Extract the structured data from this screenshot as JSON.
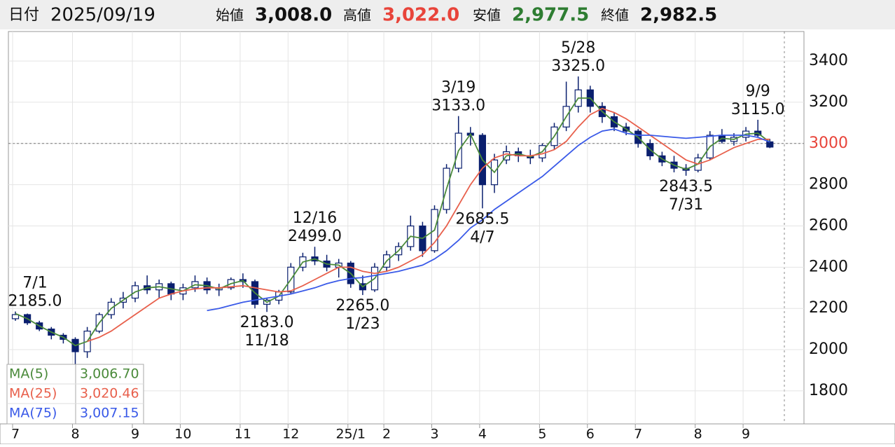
{
  "header": {
    "date_label": "日付",
    "date": "2025/09/19",
    "quotes": [
      {
        "label": "始値",
        "value": "3,008.0",
        "color": "#111111"
      },
      {
        "label": "高値",
        "value": "3,022.0",
        "color": "#e8443a"
      },
      {
        "label": "安値",
        "value": "2,977.5",
        "color": "#2e7d32"
      },
      {
        "label": "終値",
        "value": "2,982.5",
        "color": "#111111"
      }
    ]
  },
  "chart_data": {
    "type": "candlestick",
    "categories": [
      "7",
      null,
      null,
      null,
      null,
      "8",
      null,
      null,
      null,
      null,
      "9",
      null,
      null,
      null,
      "10",
      null,
      null,
      null,
      null,
      "11",
      null,
      null,
      null,
      "12",
      null,
      null,
      null,
      null,
      "25/1",
      null,
      null,
      "2",
      null,
      null,
      null,
      "3",
      null,
      null,
      null,
      "4",
      null,
      null,
      null,
      null,
      "5",
      null,
      null,
      null,
      "6",
      null,
      null,
      null,
      "7",
      null,
      null,
      null,
      null,
      "8",
      null,
      null,
      null,
      "9",
      null,
      null
    ],
    "candles": [
      [
        2150,
        2185,
        2140,
        2170
      ],
      [
        2170,
        2175,
        2120,
        2130
      ],
      [
        2130,
        2140,
        2090,
        2100
      ],
      [
        2100,
        2110,
        2050,
        2070
      ],
      [
        2070,
        2080,
        2030,
        2050
      ],
      [
        2050,
        2060,
        1920,
        1990
      ],
      [
        1990,
        2110,
        1960,
        2090
      ],
      [
        2090,
        2180,
        2080,
        2170
      ],
      [
        2170,
        2250,
        2150,
        2230
      ],
      [
        2230,
        2280,
        2200,
        2250
      ],
      [
        2250,
        2330,
        2230,
        2310
      ],
      [
        2310,
        2360,
        2270,
        2290
      ],
      [
        2290,
        2340,
        2250,
        2320
      ],
      [
        2320,
        2330,
        2240,
        2270
      ],
      [
        2270,
        2320,
        2240,
        2300
      ],
      [
        2300,
        2360,
        2280,
        2330
      ],
      [
        2330,
        2350,
        2270,
        2290
      ],
      [
        2290,
        2320,
        2260,
        2300
      ],
      [
        2300,
        2350,
        2290,
        2340
      ],
      [
        2340,
        2370,
        2300,
        2330
      ],
      [
        2330,
        2340,
        2200,
        2220
      ],
      [
        2220,
        2250,
        2183,
        2240
      ],
      [
        2240,
        2290,
        2220,
        2280
      ],
      [
        2280,
        2420,
        2270,
        2400
      ],
      [
        2400,
        2470,
        2380,
        2450
      ],
      [
        2450,
        2499,
        2410,
        2430
      ],
      [
        2430,
        2460,
        2380,
        2400
      ],
      [
        2400,
        2440,
        2350,
        2420
      ],
      [
        2420,
        2430,
        2300,
        2320
      ],
      [
        2320,
        2360,
        2265,
        2290
      ],
      [
        2290,
        2420,
        2280,
        2400
      ],
      [
        2400,
        2480,
        2380,
        2460
      ],
      [
        2460,
        2520,
        2430,
        2500
      ],
      [
        2500,
        2650,
        2480,
        2600
      ],
      [
        2600,
        2620,
        2450,
        2480
      ],
      [
        2480,
        2700,
        2470,
        2680
      ],
      [
        2680,
        2900,
        2660,
        2880
      ],
      [
        2880,
        3133,
        2860,
        3050
      ],
      [
        3050,
        3080,
        2990,
        3040
      ],
      [
        3040,
        3050,
        2685.5,
        2800
      ],
      [
        2800,
        2950,
        2760,
        2920
      ],
      [
        2920,
        2990,
        2900,
        2960
      ],
      [
        2960,
        2980,
        2910,
        2940
      ],
      [
        2940,
        2970,
        2900,
        2930
      ],
      [
        2930,
        3000,
        2910,
        2990
      ],
      [
        2990,
        3100,
        2970,
        3080
      ],
      [
        3080,
        3300,
        3060,
        3180
      ],
      [
        3180,
        3325,
        3150,
        3260
      ],
      [
        3260,
        3280,
        3150,
        3180
      ],
      [
        3180,
        3200,
        3100,
        3130
      ],
      [
        3130,
        3150,
        3060,
        3080
      ],
      [
        3080,
        3100,
        3040,
        3060
      ],
      [
        3060,
        3070,
        2980,
        3000
      ],
      [
        3000,
        3020,
        2920,
        2940
      ],
      [
        2940,
        2960,
        2890,
        2910
      ],
      [
        2910,
        2940,
        2860,
        2880
      ],
      [
        2880,
        2900,
        2843.5,
        2870
      ],
      [
        2870,
        2950,
        2860,
        2930
      ],
      [
        2930,
        3060,
        2920,
        3040
      ],
      [
        3040,
        3070,
        3000,
        3010
      ],
      [
        3010,
        3050,
        2990,
        3030
      ],
      [
        3030,
        3080,
        3010,
        3060
      ],
      [
        3060,
        3115,
        3030,
        3040
      ],
      [
        3008,
        3022,
        2977.5,
        2982.5
      ]
    ],
    "up_color": "#ffffff",
    "down_color": "#0a1f6e",
    "outline_color": "#0a1f6e",
    "series": [
      {
        "name": "MA(5)",
        "color": "#4a8a3a",
        "latest": "3,006.70",
        "values": [
          2175,
          2150,
          2115,
          2085,
          2060,
          2020,
          2040,
          2130,
          2200,
          2240,
          2280,
          2300,
          2305,
          2295,
          2285,
          2315,
          2310,
          2295,
          2320,
          2335,
          2275,
          2230,
          2260,
          2340,
          2425,
          2440,
          2415,
          2410,
          2370,
          2305,
          2345,
          2430,
          2480,
          2550,
          2540,
          2580,
          2780,
          2965,
          3045,
          2920,
          2860,
          2940,
          2950,
          2935,
          2960,
          3035,
          3130,
          3220,
          3220,
          3155,
          3105,
          3070,
          3030,
          2970,
          2925,
          2895,
          2875,
          2900,
          2985,
          3025,
          3020,
          3045,
          3050,
          3006.7
        ]
      },
      {
        "name": "MA(25)",
        "color": "#e8604c",
        "latest": "3,020.46",
        "values": [
          null,
          null,
          null,
          null,
          null,
          null,
          2040,
          2060,
          2090,
          2130,
          2170,
          2210,
          2250,
          2270,
          2285,
          2295,
          2300,
          2300,
          2305,
          2310,
          2300,
          2290,
          2280,
          2285,
          2310,
          2340,
          2370,
          2400,
          2400,
          2380,
          2370,
          2380,
          2400,
          2430,
          2460,
          2520,
          2600,
          2700,
          2800,
          2880,
          2930,
          2950,
          2940,
          2940,
          2950,
          2970,
          3010,
          3080,
          3140,
          3170,
          3150,
          3120,
          3080,
          3040,
          3000,
          2960,
          2920,
          2900,
          2920,
          2950,
          2980,
          3000,
          3020,
          3020.46
        ]
      },
      {
        "name": "MA(75)",
        "color": "#3a5ae8",
        "latest": "3,007.15",
        "values": [
          null,
          null,
          null,
          null,
          null,
          null,
          null,
          null,
          null,
          null,
          null,
          null,
          null,
          null,
          null,
          null,
          2190,
          2200,
          2215,
          2230,
          2240,
          2250,
          2260,
          2270,
          2285,
          2300,
          2320,
          2335,
          2345,
          2350,
          2360,
          2370,
          2380,
          2395,
          2410,
          2440,
          2480,
          2530,
          2590,
          2630,
          2680,
          2720,
          2760,
          2800,
          2840,
          2890,
          2940,
          2990,
          3030,
          3060,
          3070,
          3050,
          3040,
          3040,
          3035,
          3030,
          3025,
          3030,
          3035,
          3040,
          3040,
          3040,
          3030,
          3007.15
        ]
      }
    ],
    "annotations": [
      {
        "candle": 0,
        "side": "high",
        "lines": [
          "7/1",
          "2185.0"
        ]
      },
      {
        "candle": 21,
        "side": "low",
        "lines": [
          "2183.0",
          "11/18"
        ]
      },
      {
        "candle": 25,
        "side": "high",
        "lines": [
          "12/16",
          "2499.0"
        ]
      },
      {
        "candle": 29,
        "side": "low",
        "lines": [
          "2265.0",
          "1/23"
        ]
      },
      {
        "candle": 37,
        "side": "high",
        "lines": [
          "3/19",
          "3133.0"
        ]
      },
      {
        "candle": 39,
        "side": "low",
        "lines": [
          "2685.5",
          "4/7"
        ]
      },
      {
        "candle": 47,
        "side": "high",
        "lines": [
          "5/28",
          "3325.0"
        ]
      },
      {
        "candle": 56,
        "side": "low",
        "lines": [
          "2843.5",
          "7/31"
        ]
      },
      {
        "candle": 62,
        "side": "high",
        "lines": [
          "9/9",
          "3115.0"
        ]
      }
    ],
    "ylim": [
      1640,
      3543
    ],
    "yticks": [
      1800,
      2000,
      2200,
      2400,
      2600,
      2800,
      3000,
      3200,
      3400
    ],
    "price_line": {
      "value": 3000,
      "color": "#e8443a"
    },
    "grid": true
  }
}
